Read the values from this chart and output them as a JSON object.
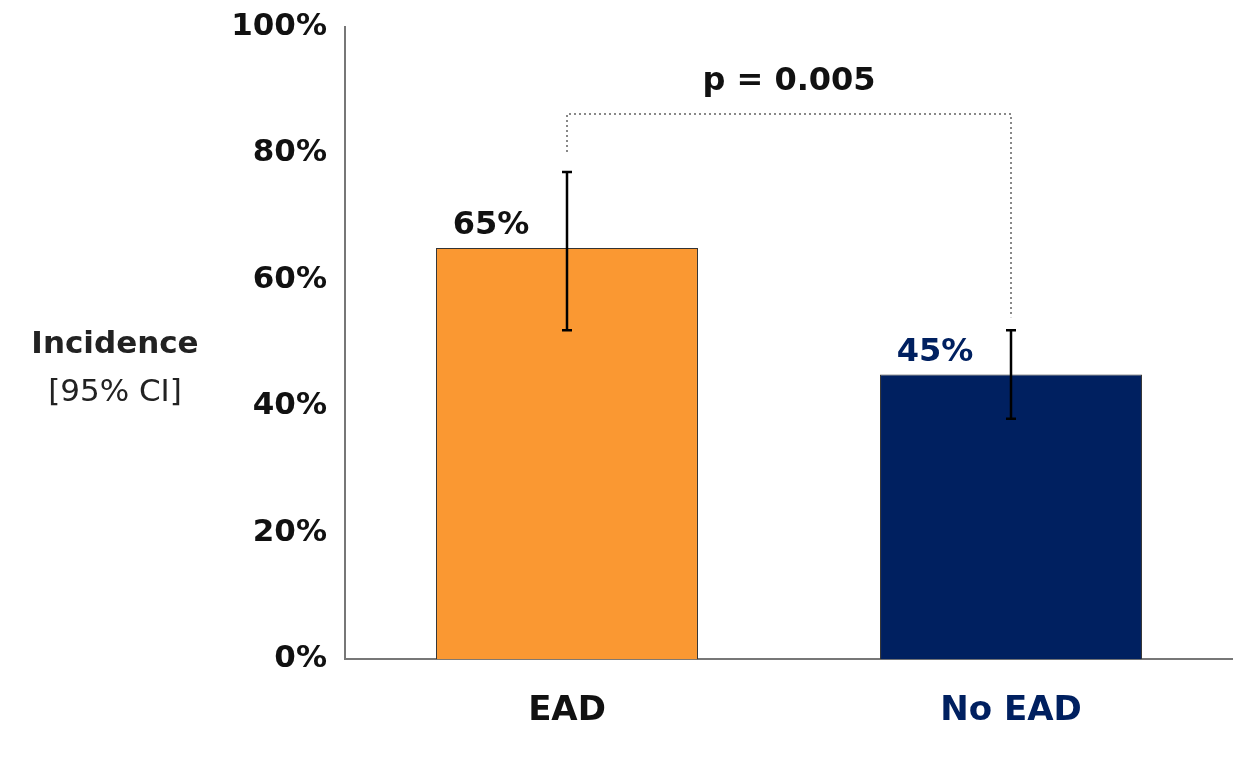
{
  "chart_data": {
    "type": "bar",
    "ylabel": "Incidence\n[95% CI]",
    "categories": [
      "EAD",
      "No EAD"
    ],
    "values": [
      65,
      45
    ],
    "colors": [
      "#fa9832",
      "#002060"
    ],
    "errors": [
      [
        52,
        77
      ],
      [
        38,
        52
      ]
    ],
    "value_labels": [
      "65%",
      "45%"
    ],
    "ylim": [
      0,
      100
    ],
    "yticks": [
      {
        "value": 0,
        "label": "0%"
      },
      {
        "value": 20,
        "label": "20%"
      },
      {
        "value": 40,
        "label": "40%"
      },
      {
        "value": 60,
        "label": "60%"
      },
      {
        "value": 80,
        "label": "80%"
      },
      {
        "value": 100,
        "label": "100%"
      }
    ],
    "grid": false,
    "legend": false,
    "annotations": [
      "p = 0.005"
    ]
  }
}
